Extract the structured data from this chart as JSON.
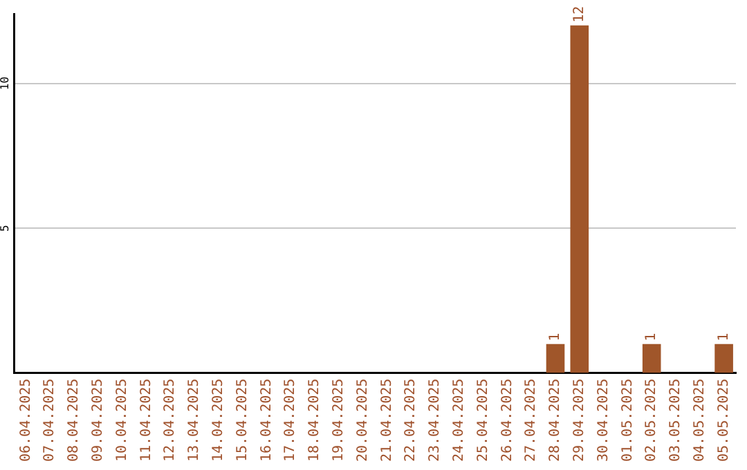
{
  "chart_data": {
    "type": "bar",
    "categories": [
      "06.04.2025",
      "07.04.2025",
      "08.04.2025",
      "09.04.2025",
      "10.04.2025",
      "11.04.2025",
      "12.04.2025",
      "13.04.2025",
      "14.04.2025",
      "15.04.2025",
      "16.04.2025",
      "17.04.2025",
      "18.04.2025",
      "19.04.2025",
      "20.04.2025",
      "21.04.2025",
      "22.04.2025",
      "23.04.2025",
      "24.04.2025",
      "25.04.2025",
      "26.04.2025",
      "27.04.2025",
      "28.04.2025",
      "29.04.2025",
      "30.04.2025",
      "01.05.2025",
      "02.05.2025",
      "03.05.2025",
      "04.05.2025",
      "05.05.2025"
    ],
    "values": [
      0,
      0,
      0,
      0,
      0,
      0,
      0,
      0,
      0,
      0,
      0,
      0,
      0,
      0,
      0,
      0,
      0,
      0,
      0,
      0,
      0,
      0,
      1,
      12,
      0,
      0,
      1,
      0,
      0,
      1
    ],
    "value_labels": [
      null,
      null,
      null,
      null,
      null,
      null,
      null,
      null,
      null,
      null,
      null,
      null,
      null,
      null,
      null,
      null,
      null,
      null,
      null,
      null,
      null,
      null,
      "1",
      "12",
      null,
      null,
      "1",
      null,
      null,
      "1"
    ],
    "color": "#a0562a",
    "ylim": [
      0,
      12.4
    ],
    "yticks": [
      5,
      10
    ],
    "grid": "y",
    "legend": false
  }
}
